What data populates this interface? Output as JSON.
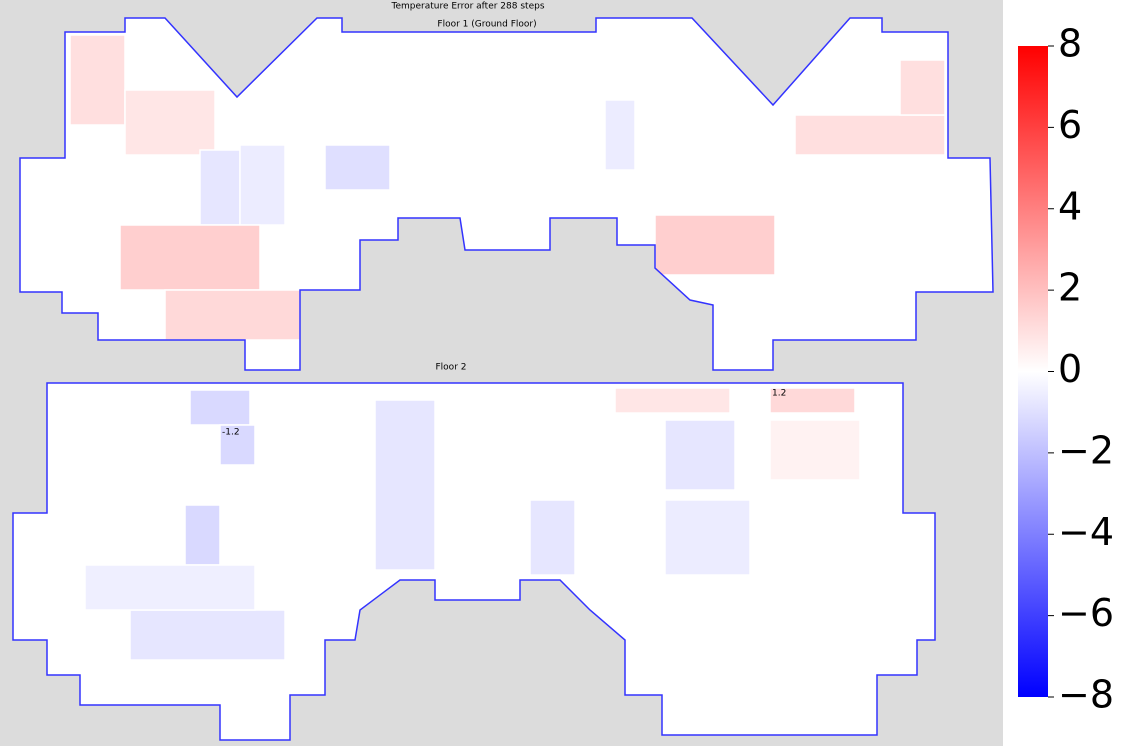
{
  "chart_data": {
    "type": "floorplan",
    "title": "Temperature Error after 288 steps",
    "clim": [
      -8,
      8
    ],
    "cticks": [
      {
        "value": -8,
        "label": "−8"
      },
      {
        "value": -6,
        "label": "−6"
      },
      {
        "value": -4,
        "label": "−4"
      },
      {
        "value": -2,
        "label": "−2"
      },
      0,
      2,
      4,
      6,
      8
    ],
    "floors": [
      {
        "title": "Floor 1 (Ground Floor)",
        "room_values": [
          1.0,
          0.8,
          -0.8,
          -0.6,
          -1.0,
          0.0,
          -0.6,
          1.0,
          1.5,
          1.5,
          1.2,
          1.0
        ],
        "annotations": []
      },
      {
        "title": "Floor 2",
        "room_values": [
          -1.2,
          -1.2,
          -0.8,
          -0.8,
          1.2,
          0.8,
          -0.8,
          -1.2,
          -0.8,
          -0.6,
          0.4,
          -0.5
        ],
        "annotations": [
          -1.2,
          1.2
        ]
      }
    ]
  }
}
